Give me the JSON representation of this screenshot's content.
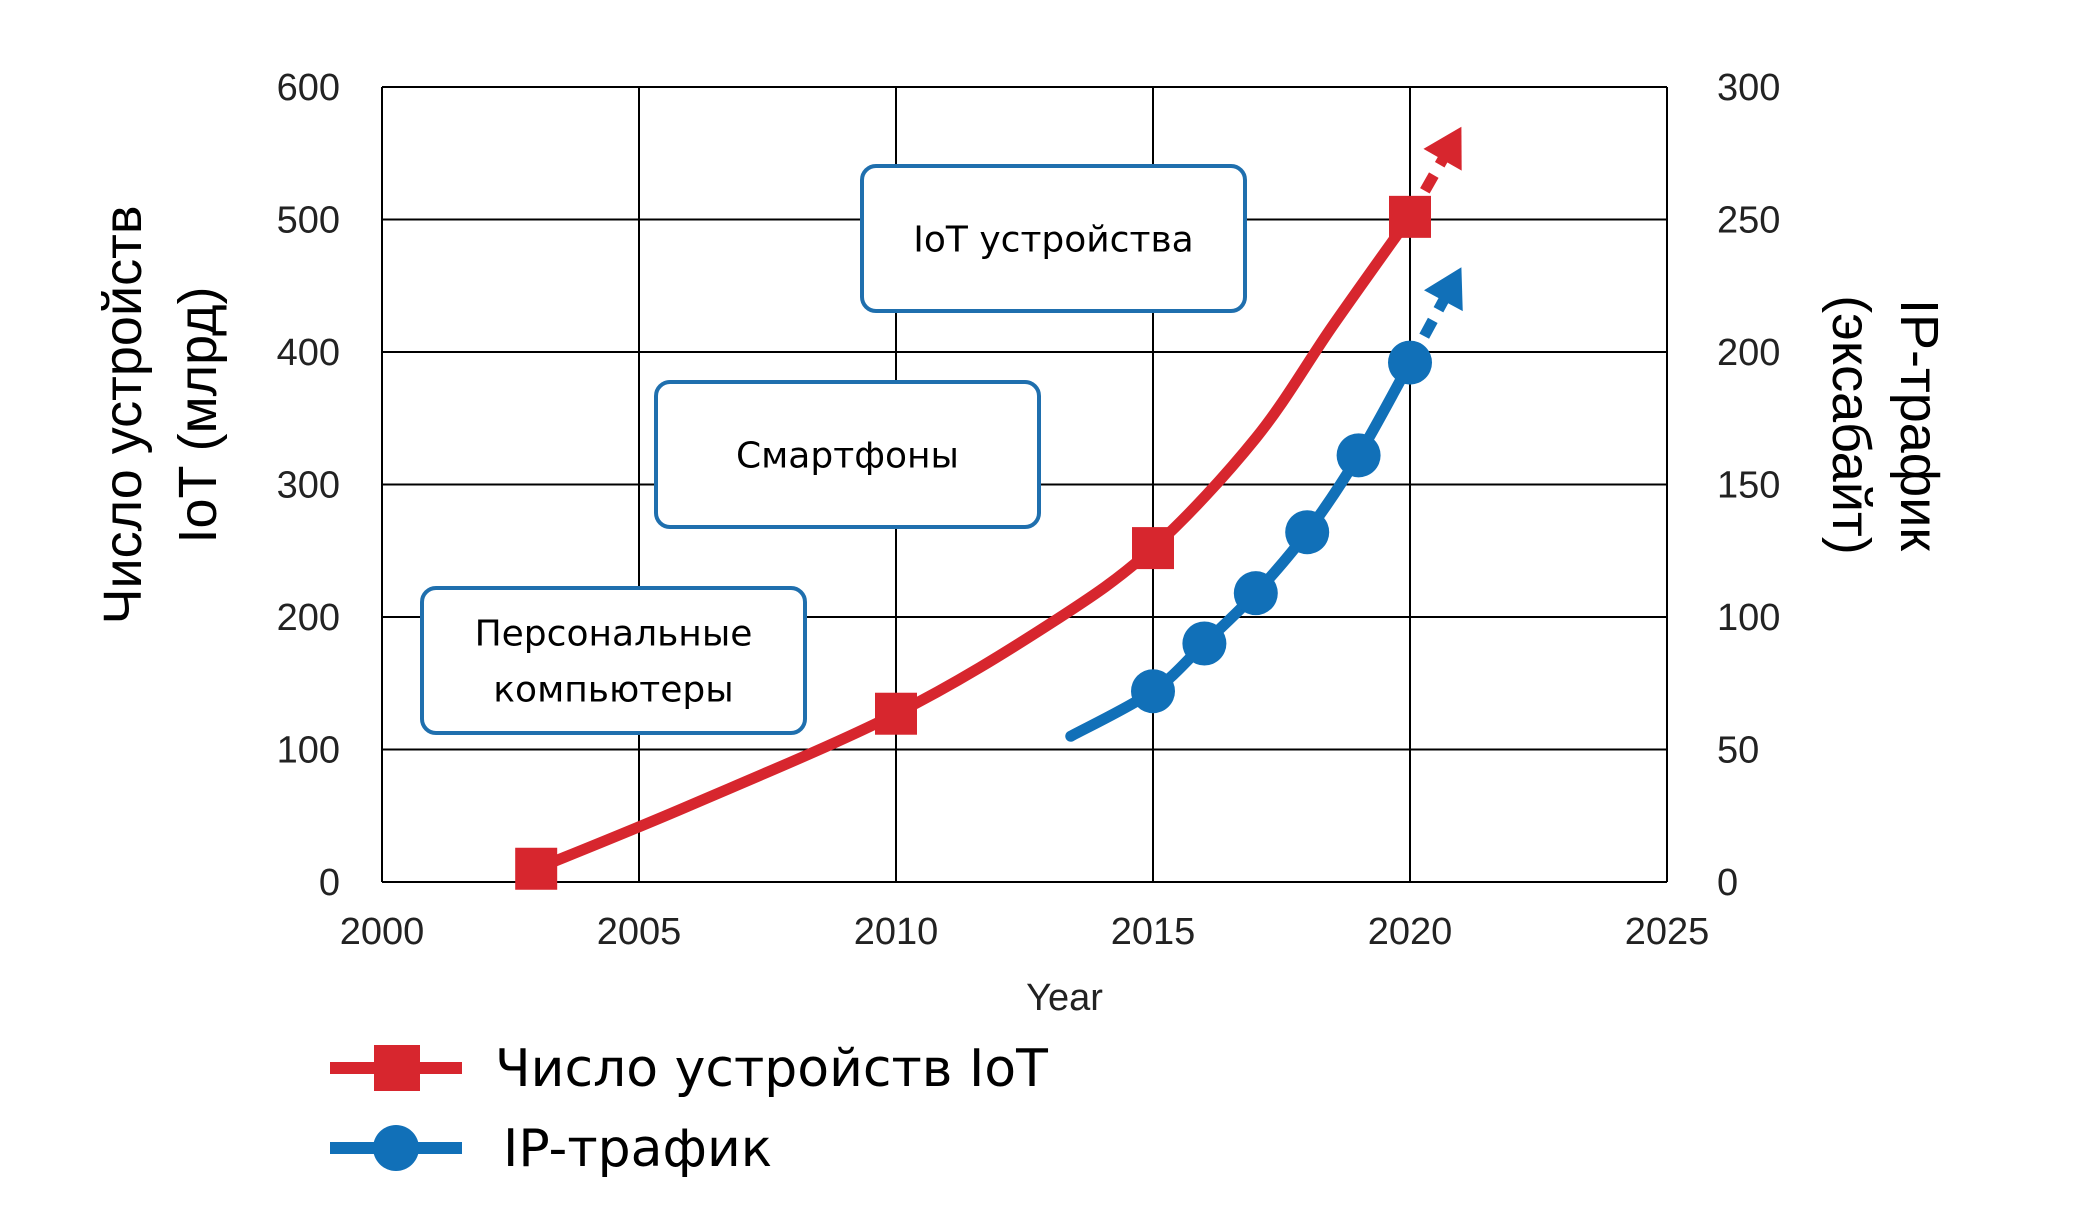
{
  "chart_data": {
    "type": "line",
    "xlabel": "Year",
    "ylabel_left": [
      "Число устройств",
      "IoT (млрд)"
    ],
    "ylabel_right": [
      "IP-трафик",
      "(эксабайт)"
    ],
    "xlim": [
      2000,
      2025
    ],
    "ylim_left": [
      0,
      600
    ],
    "ylim_right": [
      0,
      300
    ],
    "x_ticks": [
      "2000",
      "2005",
      "2010",
      "2015",
      "2020",
      "2025"
    ],
    "y_ticks_left": [
      "0",
      "100",
      "200",
      "300",
      "400",
      "500",
      "600"
    ],
    "y_ticks_right": [
      "0",
      "50",
      "100",
      "150",
      "200",
      "250",
      "300"
    ],
    "grid": true,
    "legend_position": "bottom-left",
    "series": [
      {
        "name": "Число устройств IoT",
        "axis": "left",
        "color": "#d7262e",
        "marker": "square",
        "markers": [
          {
            "x": 2003,
            "y": 10
          },
          {
            "x": 2010,
            "y": 127
          },
          {
            "x": 2015,
            "y": 252
          },
          {
            "x": 2020,
            "y": 502
          }
        ],
        "curve": [
          {
            "x": 2003,
            "y": 10
          },
          {
            "x": 2006,
            "y": 58
          },
          {
            "x": 2010,
            "y": 127
          },
          {
            "x": 2013,
            "y": 195
          },
          {
            "x": 2015,
            "y": 252
          },
          {
            "x": 2017,
            "y": 335
          },
          {
            "x": 2018.5,
            "y": 420
          },
          {
            "x": 2020,
            "y": 502
          }
        ],
        "projection": [
          {
            "x": 2020,
            "y": 502
          },
          {
            "x": 2021,
            "y": 570
          }
        ]
      },
      {
        "name": "IP-трафик",
        "axis": "right",
        "color": "#1170b8",
        "marker": "circle",
        "markers": [
          {
            "x": 2015,
            "y": 72
          },
          {
            "x": 2016,
            "y": 90
          },
          {
            "x": 2017,
            "y": 109
          },
          {
            "x": 2018,
            "y": 132
          },
          {
            "x": 2019,
            "y": 161
          },
          {
            "x": 2020,
            "y": 196
          }
        ],
        "curve": [
          {
            "x": 2013.4,
            "y": 55
          },
          {
            "x": 2015,
            "y": 72
          },
          {
            "x": 2016,
            "y": 90
          },
          {
            "x": 2017,
            "y": 109
          },
          {
            "x": 2018,
            "y": 132
          },
          {
            "x": 2019,
            "y": 161
          },
          {
            "x": 2020,
            "y": 196
          }
        ],
        "projection": [
          {
            "x": 2020,
            "y": 196
          },
          {
            "x": 2021,
            "y": 232
          }
        ]
      }
    ],
    "annotations": [
      {
        "id": "pc",
        "lines": [
          "Персональные",
          "компьютеры"
        ]
      },
      {
        "id": "smartphones",
        "lines": [
          "Смартфоны"
        ]
      },
      {
        "id": "iot",
        "lines": [
          "IoT устройства"
        ]
      }
    ]
  },
  "colors": {
    "iot_red": "#d7262e",
    "traffic_blue": "#1170b8",
    "box_border": "#1f6fae",
    "grid": "#000000"
  }
}
